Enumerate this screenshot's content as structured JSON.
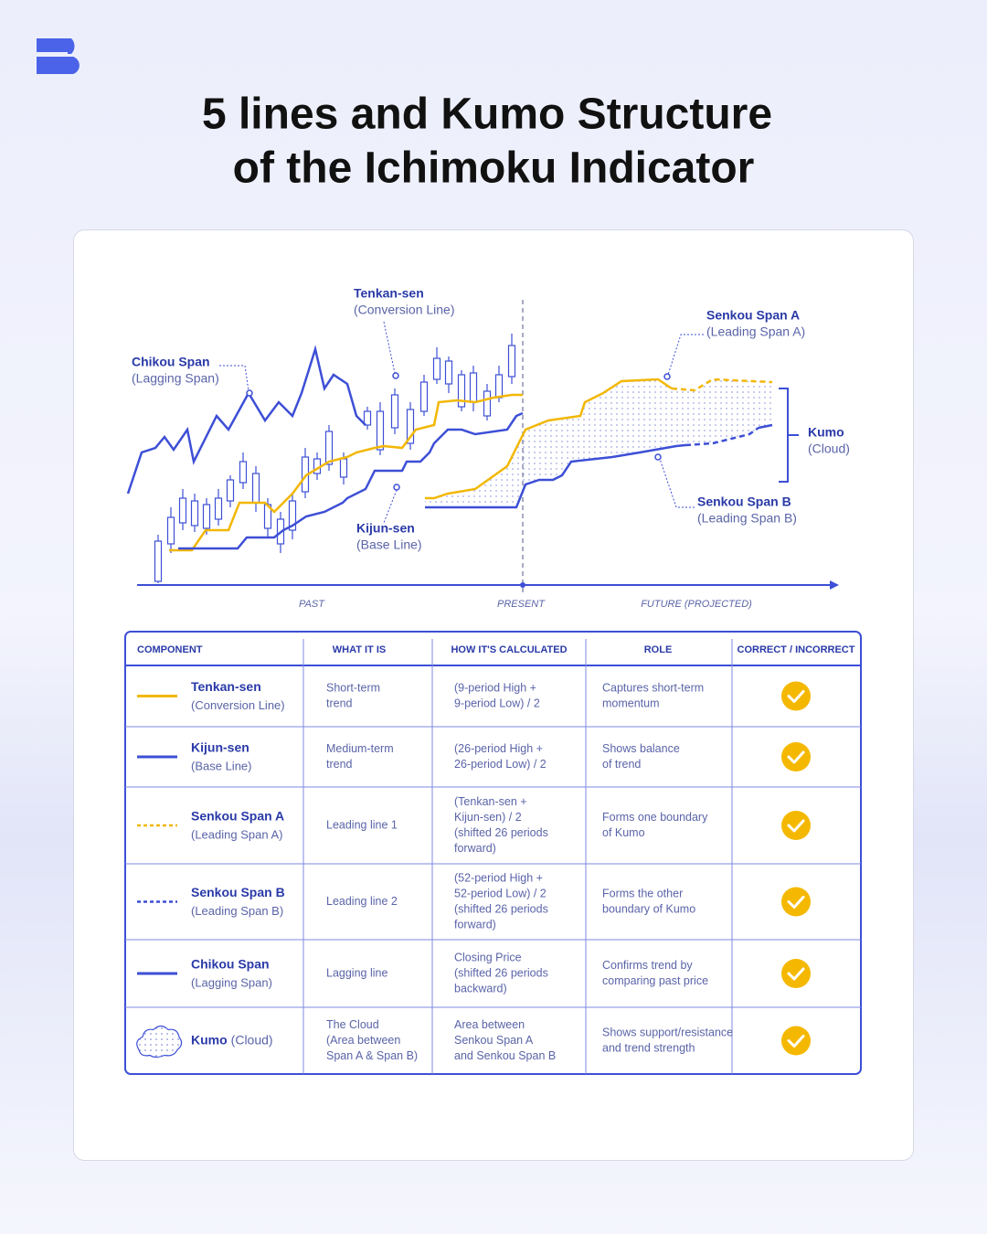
{
  "title": [
    "5 lines and Kumo Structure",
    "of the Ichimoku Indicator"
  ],
  "diagram": {
    "labels": [
      {
        "name": "Chikou Span",
        "sub": "(Lagging Span)"
      },
      {
        "name": "Tenkan-sen",
        "sub": "(Conversion Line)"
      },
      {
        "name": "Senkou Span A",
        "sub": "(Leading Span A)"
      },
      {
        "name": "Kumo",
        "sub": "(Cloud)"
      },
      {
        "name": "Senkou Span B",
        "sub": "(Leading Span B)"
      },
      {
        "name": "Kijun-sen",
        "sub": "(Base Line)"
      }
    ],
    "axis": [
      "PAST",
      "PRESENT",
      "FUTURE (PROJECTED)"
    ]
  },
  "table": {
    "headers": [
      "COMPONENT",
      "WHAT IT IS",
      "HOW IT'S CALCULATED",
      "ROLE",
      "CORRECT / INCORRECT"
    ],
    "rows": [
      {
        "name": "Tenkan-sen",
        "sub": "(Conversion Line)",
        "what": [
          "Short-term",
          "trend"
        ],
        "how": [
          "(9-period High +",
          "9-period Low) / 2"
        ],
        "role": [
          "Captures short-term",
          "momentum"
        ]
      },
      {
        "name": "Kijun-sen",
        "sub": "(Base Line)",
        "what": [
          "Medium-term",
          "trend"
        ],
        "how": [
          "(26-period High +",
          "26-period Low) / 2"
        ],
        "role": [
          "Shows balance",
          "of trend"
        ]
      },
      {
        "name": "Senkou Span A",
        "sub": "(Leading Span A)",
        "what": [
          "Leading line 1"
        ],
        "how": [
          "(Tenkan-sen +",
          "Kijun-sen) / 2",
          "(shifted 26 periods",
          "forward)"
        ],
        "role": [
          "Forms one boundary",
          "of Kumo"
        ]
      },
      {
        "name": "Senkou Span B",
        "sub": "(Leading Span B)",
        "what": [
          "Leading line 2"
        ],
        "how": [
          "(52-period High +",
          "52-period Low) / 2",
          "(shifted 26 periods",
          "forward)"
        ],
        "role": [
          "Forms the other",
          "boundary of Kumo"
        ]
      },
      {
        "name": "Chikou Span",
        "sub": "(Lagging Span)",
        "what": [
          "Lagging line"
        ],
        "how": [
          "Closing Price",
          "(shifted 26 periods",
          "backward)"
        ],
        "role": [
          "Confirms trend by",
          "comparing past price"
        ]
      },
      {
        "name": "Kumo",
        "sub": "(Cloud)",
        "what": [
          "The Cloud",
          "(Area between",
          "Span A & Span B)"
        ],
        "how": [
          "Area between",
          "Senkou Span A",
          "and Senkou Span B"
        ],
        "role": [
          "Shows support/resistance",
          "and trend strength"
        ]
      }
    ]
  }
}
